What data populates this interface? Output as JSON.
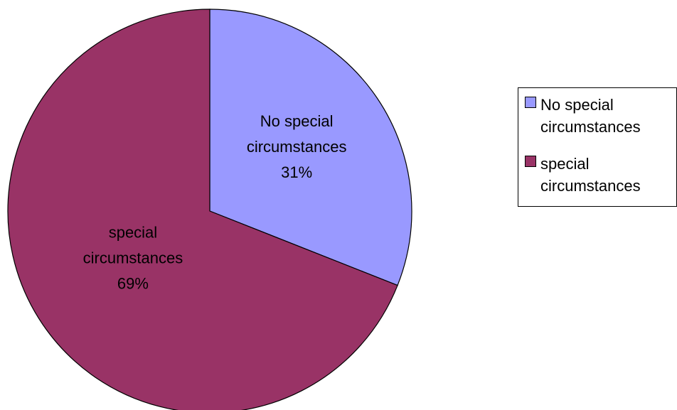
{
  "chart_data": {
    "type": "pie",
    "title": "",
    "series": [
      {
        "name": "",
        "values": [
          31,
          69
        ]
      }
    ],
    "slices": [
      {
        "label_line1": "No special",
        "label_line2": "circumstances",
        "percent_label": "31%",
        "value": 31,
        "color": "#9999FF"
      },
      {
        "label_line1": "special",
        "label_line2": "circumstances",
        "percent_label": "69%",
        "value": 69,
        "color": "#993366"
      }
    ],
    "legend": {
      "placement": "right",
      "items": [
        {
          "line1": "No special",
          "line2": "circumstances",
          "color": "#9999FF"
        },
        {
          "line1": "special",
          "line2": "circumstances",
          "color": "#993366"
        }
      ]
    }
  }
}
